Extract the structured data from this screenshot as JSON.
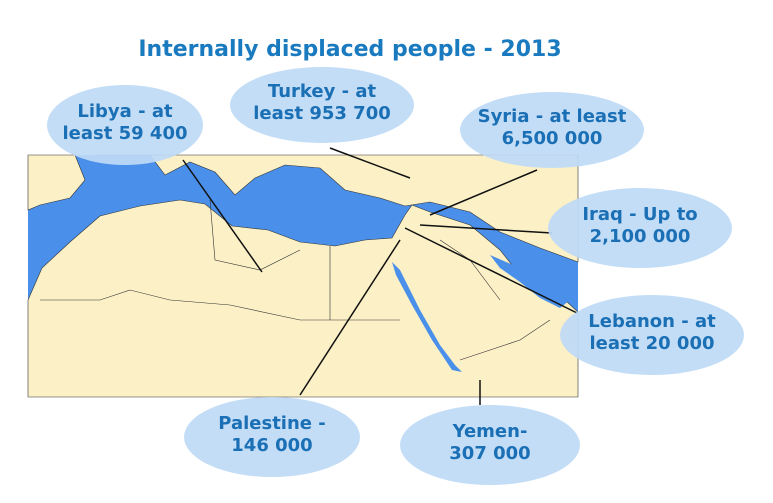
{
  "title": "Internally displaced people - 2013",
  "labels": [
    {
      "lines": [
        "Libya - at",
        "least 59 400"
      ]
    },
    {
      "lines": [
        "Turkey - at",
        "least 953 700"
      ]
    },
    {
      "lines": [
        "Syria - at least",
        "6,500 000"
      ]
    },
    {
      "lines": [
        "Iraq - Up to",
        "2,100 000"
      ]
    },
    {
      "lines": [
        "Lebanon - at",
        "least 20 000"
      ]
    },
    {
      "lines": [
        "Palestine -",
        "146 000"
      ]
    },
    {
      "lines": [
        "Yemen-",
        "307 000"
      ]
    }
  ]
}
